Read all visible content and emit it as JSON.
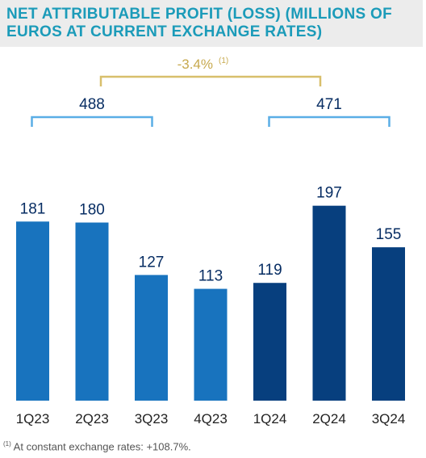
{
  "title": "NET ATTRIBUTABLE PROFIT (LOSS) (MILLIONS OF EUROS AT CURRENT EXCHANGE RATES)",
  "colors": {
    "title": "#1b9bb9",
    "bar_2023": "#1873be",
    "bar_2024": "#073f7e",
    "label": "#072d63",
    "bracket_2023": "#5aaee6",
    "bracket_change": "#d8bf6c",
    "change_text": "#c7a94e"
  },
  "chart_data": {
    "type": "bar",
    "categories": [
      "1Q23",
      "2Q23",
      "3Q23",
      "4Q23",
      "1Q24",
      "2Q24",
      "3Q24"
    ],
    "values": [
      181,
      180,
      127,
      113,
      119,
      197,
      155
    ],
    "data_labels": [
      "181",
      "180",
      "127",
      "113",
      "119",
      "197",
      "155"
    ],
    "year_groups": [
      {
        "label": "488",
        "from": "1Q23",
        "to": "3Q23"
      },
      {
        "label": "471",
        "from": "1Q24",
        "to": "3Q24"
      }
    ],
    "change": {
      "label": "-3.4%",
      "note": "(1)",
      "from": "2Q23",
      "to": "2Q24"
    },
    "ylim": [
      0,
      200
    ]
  },
  "footnote": {
    "marker": "(1)",
    "text": " At constant exchange rates: +108.7%."
  }
}
